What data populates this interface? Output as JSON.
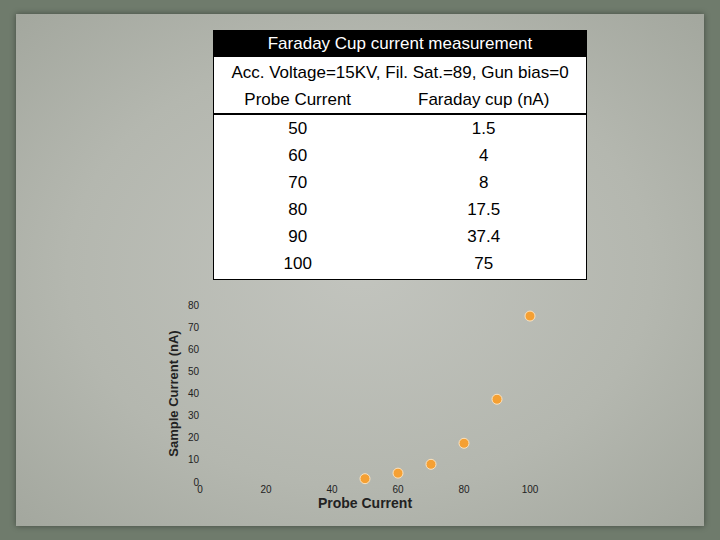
{
  "table": {
    "title": "Faraday Cup current measurement",
    "subtitle": "Acc. Voltage=15KV, Fil. Sat.=89, Gun bias=0",
    "columns": [
      "Probe Current",
      "Faraday cup (nA)"
    ],
    "rows": [
      [
        "50",
        "1.5"
      ],
      [
        "60",
        "4"
      ],
      [
        "70",
        "8"
      ],
      [
        "80",
        "17.5"
      ],
      [
        "90",
        "37.4"
      ],
      [
        "100",
        "75"
      ]
    ]
  },
  "chart_data": {
    "type": "scatter",
    "xlabel": "Probe Current",
    "ylabel": "Sample Current (nA)",
    "x": [
      50,
      60,
      70,
      80,
      90,
      100
    ],
    "values": [
      1.5,
      4,
      8,
      17.5,
      37.4,
      75
    ],
    "color": "#f5a033",
    "marker": "circle",
    "xlim": [
      0,
      100
    ],
    "xticks": [
      0,
      20,
      40,
      60,
      80,
      100
    ],
    "ylim": [
      0,
      80
    ],
    "yticks": [
      0,
      10,
      20,
      30,
      40,
      50,
      60,
      70,
      80
    ],
    "grid": false
  }
}
